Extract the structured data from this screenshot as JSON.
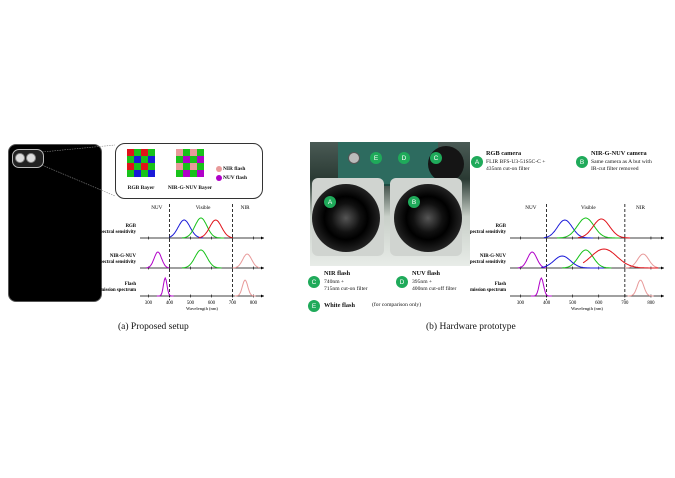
{
  "captions": {
    "left": "(a) Proposed setup",
    "right": "(b) Hardware prototype"
  },
  "legend": {
    "rgb_bayer": "RGB Bayer",
    "nirgnuv_bayer": "NIR-G-NUV Bayer",
    "nir_flash": "NIR flash",
    "nuv_flash": "NUV flash"
  },
  "plot_left": {
    "regions": [
      "NUV",
      "Visible",
      "NIR"
    ],
    "rows": [
      "RGB\nspectral sensitivity",
      "NIR-G-NUV\nspectral sensitivity",
      "Flash\nemission spectrum"
    ],
    "xticks": [
      "300",
      "400",
      "500",
      "600",
      "700",
      "800"
    ],
    "xlabel": "Wavelength (nm)"
  },
  "plot_right": {
    "regions": [
      "NUV",
      "Visible",
      "NIR"
    ],
    "rows": [
      "RGB\nspectral sensitivity",
      "NIR-G-NUV\nspectral sensitivity",
      "Flash\nemission spectrum"
    ],
    "xticks": [
      "300",
      "400",
      "500",
      "600",
      "700",
      "800"
    ],
    "xlabel": "Wavelength (nm)"
  },
  "photo_labels": [
    "A",
    "B",
    "C",
    "D",
    "E"
  ],
  "annotations": {
    "a": {
      "badge": "A",
      "title": "RGB camera",
      "body": "FLIR BFS-U3-51S5C-C +\n435nm cut-on filter"
    },
    "b": {
      "badge": "B",
      "title": "NIR-G-NUV camera",
      "body": "Same camera as A but with\nIR-cut filter removed"
    },
    "c": {
      "badge": "C",
      "title": "NIR flash",
      "body": "740nm +\n715nm cut-on filter"
    },
    "d": {
      "badge": "D",
      "title": "NUV flash",
      "body": "395nm +\n400nm cut-off filter"
    },
    "e": {
      "badge": "E",
      "title": "White flash",
      "body": "(for comparison only)"
    }
  },
  "colors": {
    "green_badge": "#1faa5a",
    "red": "#e0131a",
    "green": "#18c21a",
    "blue": "#1a1ad8",
    "purple": "#b000c8",
    "pink": "#e89a9a"
  }
}
